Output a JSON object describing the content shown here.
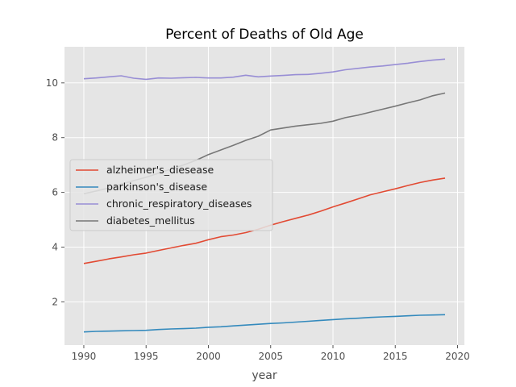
{
  "chart_data": {
    "type": "line",
    "title": "Percent of Deaths of Old Age",
    "xlabel": "year",
    "ylabel": "",
    "xlim": [
      1988.45,
      2020.55
    ],
    "ylim": [
      0.42,
      11.32
    ],
    "xticks": [
      1990,
      1995,
      2000,
      2005,
      2010,
      2015,
      2020
    ],
    "yticks": [
      2,
      4,
      6,
      8,
      10
    ],
    "grid": true,
    "legend_position": "center-left",
    "x": [
      1990,
      1991,
      1992,
      1993,
      1994,
      1995,
      1996,
      1997,
      1998,
      1999,
      2000,
      2001,
      2002,
      2003,
      2004,
      2005,
      2006,
      2007,
      2008,
      2009,
      2010,
      2011,
      2012,
      2013,
      2014,
      2015,
      2016,
      2017,
      2018,
      2019
    ],
    "series": [
      {
        "name": "alzheimer's_diesease",
        "color": "#E24A33",
        "values": [
          3.4,
          3.48,
          3.57,
          3.64,
          3.72,
          3.78,
          3.88,
          3.97,
          4.06,
          4.14,
          4.27,
          4.38,
          4.44,
          4.53,
          4.65,
          4.8,
          4.93,
          5.05,
          5.17,
          5.31,
          5.47,
          5.61,
          5.76,
          5.91,
          6.02,
          6.13,
          6.25,
          6.36,
          6.45,
          6.52
        ]
      },
      {
        "name": "parkinson's_disease",
        "color": "#348ABD",
        "values": [
          0.9,
          0.92,
          0.93,
          0.94,
          0.95,
          0.96,
          0.99,
          1.01,
          1.02,
          1.04,
          1.07,
          1.09,
          1.12,
          1.15,
          1.18,
          1.21,
          1.23,
          1.26,
          1.29,
          1.32,
          1.35,
          1.38,
          1.4,
          1.43,
          1.45,
          1.47,
          1.49,
          1.51,
          1.52,
          1.53
        ]
      },
      {
        "name": "chronic_respiratory_diseases",
        "color": "#988ED5",
        "values": [
          10.15,
          10.18,
          10.22,
          10.26,
          10.17,
          10.13,
          10.18,
          10.17,
          10.19,
          10.2,
          10.18,
          10.18,
          10.21,
          10.28,
          10.22,
          10.25,
          10.27,
          10.3,
          10.31,
          10.35,
          10.4,
          10.48,
          10.53,
          10.58,
          10.62,
          10.67,
          10.72,
          10.78,
          10.83,
          10.87
        ]
      },
      {
        "name": "diabetes_mellitus",
        "color": "#777777",
        "values": [
          5.95,
          6.05,
          6.16,
          6.3,
          6.43,
          6.55,
          6.7,
          6.85,
          7.0,
          7.17,
          7.38,
          7.55,
          7.72,
          7.9,
          8.05,
          8.28,
          8.35,
          8.42,
          8.47,
          8.52,
          8.6,
          8.73,
          8.82,
          8.93,
          9.04,
          9.15,
          9.27,
          9.38,
          9.53,
          9.63
        ]
      }
    ]
  }
}
